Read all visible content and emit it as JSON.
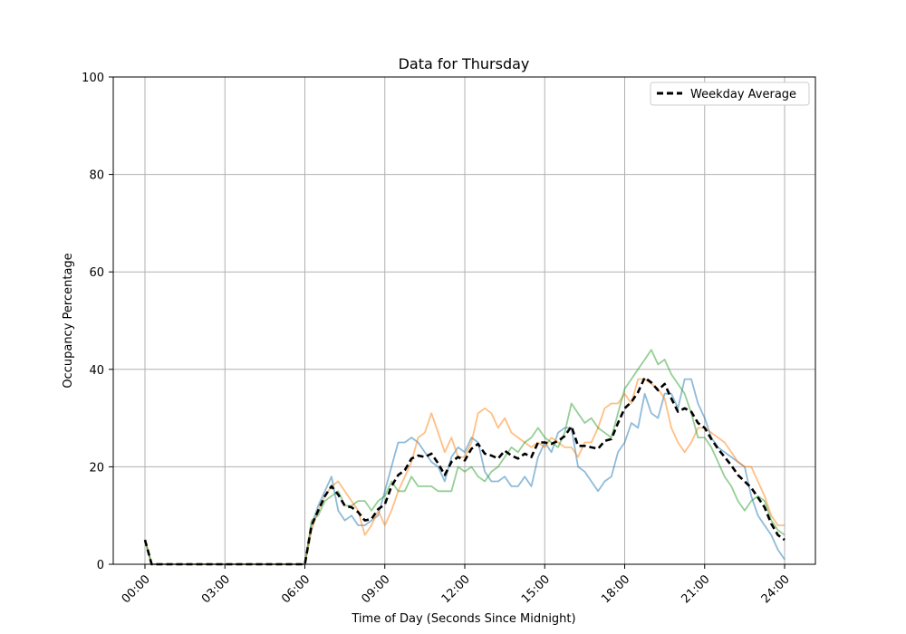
{
  "chart_data": {
    "type": "line",
    "title": "Data for Thursday",
    "xlabel": "Time of Day (Seconds Since Midnight)",
    "ylabel": "Occupancy Percentage",
    "ylim": [
      0,
      100
    ],
    "xlim": [
      "00:00",
      "24:00"
    ],
    "grid": true,
    "legend_position": "top-right",
    "x_ticks": [
      "00:00",
      "03:00",
      "06:00",
      "09:00",
      "12:00",
      "15:00",
      "18:00",
      "21:00",
      "24:00"
    ],
    "y_ticks": [
      0,
      20,
      40,
      60,
      80,
      100
    ],
    "x_interval_minutes": 15,
    "series": [
      {
        "color": "#1f77b4",
        "alpha": 0.5,
        "style": "solid",
        "values": [
          5,
          0,
          0,
          0,
          0,
          0,
          0,
          0,
          0,
          0,
          0,
          0,
          0,
          0,
          0,
          0,
          0,
          0,
          0,
          0,
          0,
          0,
          0,
          0,
          0,
          8,
          12,
          15,
          18,
          11,
          9,
          10,
          8,
          8,
          9,
          10,
          15,
          20,
          25,
          25,
          26,
          25,
          23,
          21,
          20,
          17,
          22,
          24,
          23,
          26,
          25,
          19,
          17,
          17,
          18,
          16,
          16,
          18,
          16,
          22,
          25,
          23,
          27,
          28,
          28,
          20,
          19,
          17,
          15,
          17,
          18,
          23,
          25,
          29,
          28,
          35,
          31,
          30,
          35,
          35,
          32,
          38,
          38,
          33,
          30,
          26,
          24,
          23,
          22,
          21,
          20,
          14,
          10,
          8,
          6,
          3,
          1
        ]
      },
      {
        "color": "#ff7f0e",
        "alpha": 0.5,
        "style": "solid",
        "values": [
          5,
          0,
          0,
          0,
          0,
          0,
          0,
          0,
          0,
          0,
          0,
          0,
          0,
          0,
          0,
          0,
          0,
          0,
          0,
          0,
          0,
          0,
          0,
          0,
          0,
          7,
          11,
          14,
          16,
          17,
          15,
          13,
          11,
          6,
          8,
          11,
          8,
          11,
          15,
          18,
          21,
          26,
          27,
          31,
          27,
          23,
          26,
          22,
          22,
          25,
          31,
          32,
          31,
          28,
          30,
          27,
          26,
          25,
          24,
          25,
          24,
          26,
          25,
          24,
          24,
          22,
          25,
          25,
          28,
          32,
          33,
          33,
          35,
          33,
          38,
          38,
          37,
          36,
          34,
          28,
          25,
          23,
          25,
          28,
          28,
          27,
          26,
          25,
          23,
          21,
          20,
          20,
          17,
          14,
          10,
          8,
          8
        ]
      },
      {
        "color": "#2ca02c",
        "alpha": 0.5,
        "style": "solid",
        "values": [
          5,
          0,
          0,
          0,
          0,
          0,
          0,
          0,
          0,
          0,
          0,
          0,
          0,
          0,
          0,
          0,
          0,
          0,
          0,
          0,
          0,
          0,
          0,
          0,
          0,
          9,
          10,
          13,
          14,
          15,
          12,
          12,
          13,
          13,
          11,
          13,
          14,
          17,
          15,
          15,
          18,
          16,
          16,
          16,
          15,
          15,
          15,
          20,
          19,
          20,
          18,
          17,
          19,
          20,
          22,
          24,
          23,
          25,
          26,
          28,
          26,
          25,
          24,
          27,
          33,
          31,
          29,
          30,
          28,
          27,
          26,
          31,
          36,
          38,
          40,
          42,
          44,
          41,
          42,
          39,
          37,
          35,
          31,
          26,
          26,
          24,
          21,
          18,
          16,
          13,
          11,
          13,
          14,
          13,
          9,
          7,
          6
        ]
      },
      {
        "name": "Weekday Average",
        "color": "#000000",
        "alpha": 1,
        "style": "dashed",
        "values": [
          5,
          0,
          0,
          0,
          0,
          0,
          0,
          0,
          0,
          0,
          0,
          0,
          0,
          0,
          0,
          0,
          0,
          0,
          0,
          0,
          0,
          0,
          0,
          0,
          0,
          8,
          11,
          14,
          16,
          14.3,
          12,
          11.7,
          10.7,
          9,
          9.3,
          11.3,
          12.3,
          16,
          18.3,
          19.3,
          21.7,
          22.3,
          22,
          22.7,
          20.7,
          18.3,
          21,
          22,
          21.3,
          23.7,
          24.7,
          22.7,
          22.3,
          21.7,
          23.3,
          22.3,
          21.7,
          22.7,
          22,
          25,
          25,
          24.7,
          25.3,
          26.3,
          28.3,
          24.3,
          24.3,
          24,
          23.7,
          25.3,
          25.7,
          29,
          32,
          33.3,
          35.3,
          38.3,
          37.3,
          35.7,
          37,
          34,
          31.3,
          32,
          31.3,
          29,
          28,
          25.7,
          23.7,
          22,
          20.3,
          18.3,
          17,
          15.7,
          13.7,
          11.7,
          8.3,
          6,
          5
        ]
      }
    ]
  }
}
